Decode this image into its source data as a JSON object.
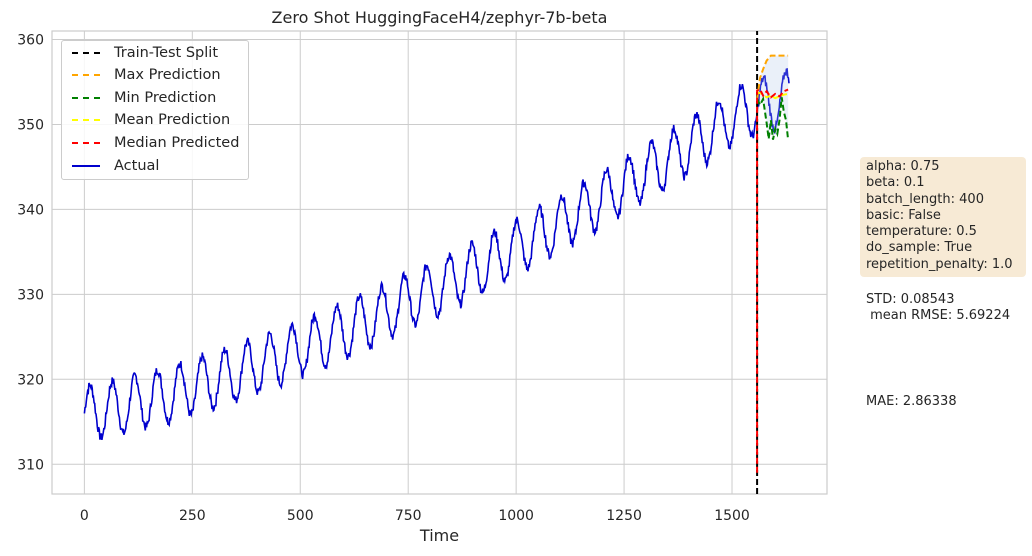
{
  "chart_data": {
    "type": "line",
    "title": "Zero Shot HuggingFaceH4/zephyr-7b-beta",
    "xlabel": "Time",
    "ylabel": "",
    "xlim": [
      -75,
      1720
    ],
    "ylim": [
      306.5,
      361
    ],
    "x_ticks": [
      "0",
      "250",
      "500",
      "750",
      "1000",
      "1250",
      "1500"
    ],
    "y_ticks": [
      "310",
      "320",
      "330",
      "340",
      "350",
      "360"
    ],
    "grid": true,
    "legend_position": "top-left",
    "train_test_split_x": 1558,
    "series": [
      {
        "name": "Train-Test Split",
        "color": "#000000",
        "style": "dashed",
        "x": [
          1558,
          1558
        ],
        "y": [
          306.5,
          361
        ]
      },
      {
        "name": "Max Prediction",
        "color": "#ffa500",
        "style": "dashed",
        "x": [
          1558,
          1565,
          1572,
          1580,
          1590,
          1600,
          1610,
          1620,
          1630
        ],
        "y": [
          353,
          355.5,
          356.5,
          357.5,
          358.1,
          358.1,
          358.1,
          358.1,
          358.1
        ]
      },
      {
        "name": "Min Prediction",
        "color": "#008000",
        "style": "dashed",
        "x": [
          1558,
          1565,
          1572,
          1580,
          1585,
          1590,
          1595,
          1600,
          1605,
          1610,
          1615,
          1620,
          1625,
          1630
        ],
        "y": [
          353,
          352.3,
          353,
          350.2,
          348.3,
          350.5,
          348.2,
          349.5,
          348.9,
          350.5,
          353.2,
          351.5,
          350.5,
          348.2
        ]
      },
      {
        "name": "Mean Prediction",
        "color": "#ffff00",
        "style": "dashed",
        "x": [
          1558,
          1570,
          1580,
          1590,
          1600,
          1610,
          1620,
          1630
        ],
        "y": [
          353.8,
          353.6,
          353.2,
          353.4,
          353.1,
          353.3,
          353.5,
          353.6
        ]
      },
      {
        "name": "Median Predicted",
        "color": "#ff0000",
        "style": "dashed",
        "x": [
          1558,
          1558,
          1565,
          1572,
          1580,
          1590,
          1600,
          1610,
          1620,
          1630
        ],
        "y": [
          309,
          354,
          354.1,
          353.4,
          353.9,
          353.2,
          353.6,
          353.3,
          353.9,
          354.1
        ]
      },
      {
        "name": "Actual",
        "color": "#0000cd",
        "style": "solid",
        "x_start": 0,
        "x_end": 1632,
        "note_period": 52,
        "trend_y": [
          316,
          316.7,
          317.8,
          318.9,
          320.2,
          321.6,
          323.2,
          324.9,
          326.6,
          328.5,
          330.4,
          332.3,
          334.4,
          336.6,
          338.9,
          341.2,
          343.7,
          346.1,
          348.7,
          351.4,
          353.2
        ],
        "trend_x": [
          0,
          80,
          160,
          240,
          320,
          400,
          480,
          560,
          640,
          720,
          800,
          880,
          960,
          1040,
          1120,
          1200,
          1280,
          1360,
          1440,
          1520,
          1632
        ],
        "seasonal_amplitude": 3.2
      }
    ]
  },
  "legend": {
    "items": [
      {
        "label": "Train-Test Split",
        "color": "#000000",
        "style": "dashed"
      },
      {
        "label": "Max Prediction",
        "color": "#ffa500",
        "style": "dashed"
      },
      {
        "label": "Min Prediction",
        "color": "#008000",
        "style": "dashed"
      },
      {
        "label": "Mean Prediction",
        "color": "#ffff00",
        "style": "dashed"
      },
      {
        "label": "Median Predicted",
        "color": "#ff0000",
        "style": "dashed"
      },
      {
        "label": "Actual",
        "color": "#0000cd",
        "style": "solid"
      }
    ]
  },
  "params_box": {
    "text": "alpha: 0.75\nbeta: 0.1\nbatch_length: 400\nbasic: False\ntemperature: 0.5\ndo_sample: True\nrepetition_penalty: 1.0"
  },
  "stats": {
    "std_line": "STD: 0.08543\n mean RMSE: 5.69224",
    "mae_line": "MAE: 2.86338"
  }
}
